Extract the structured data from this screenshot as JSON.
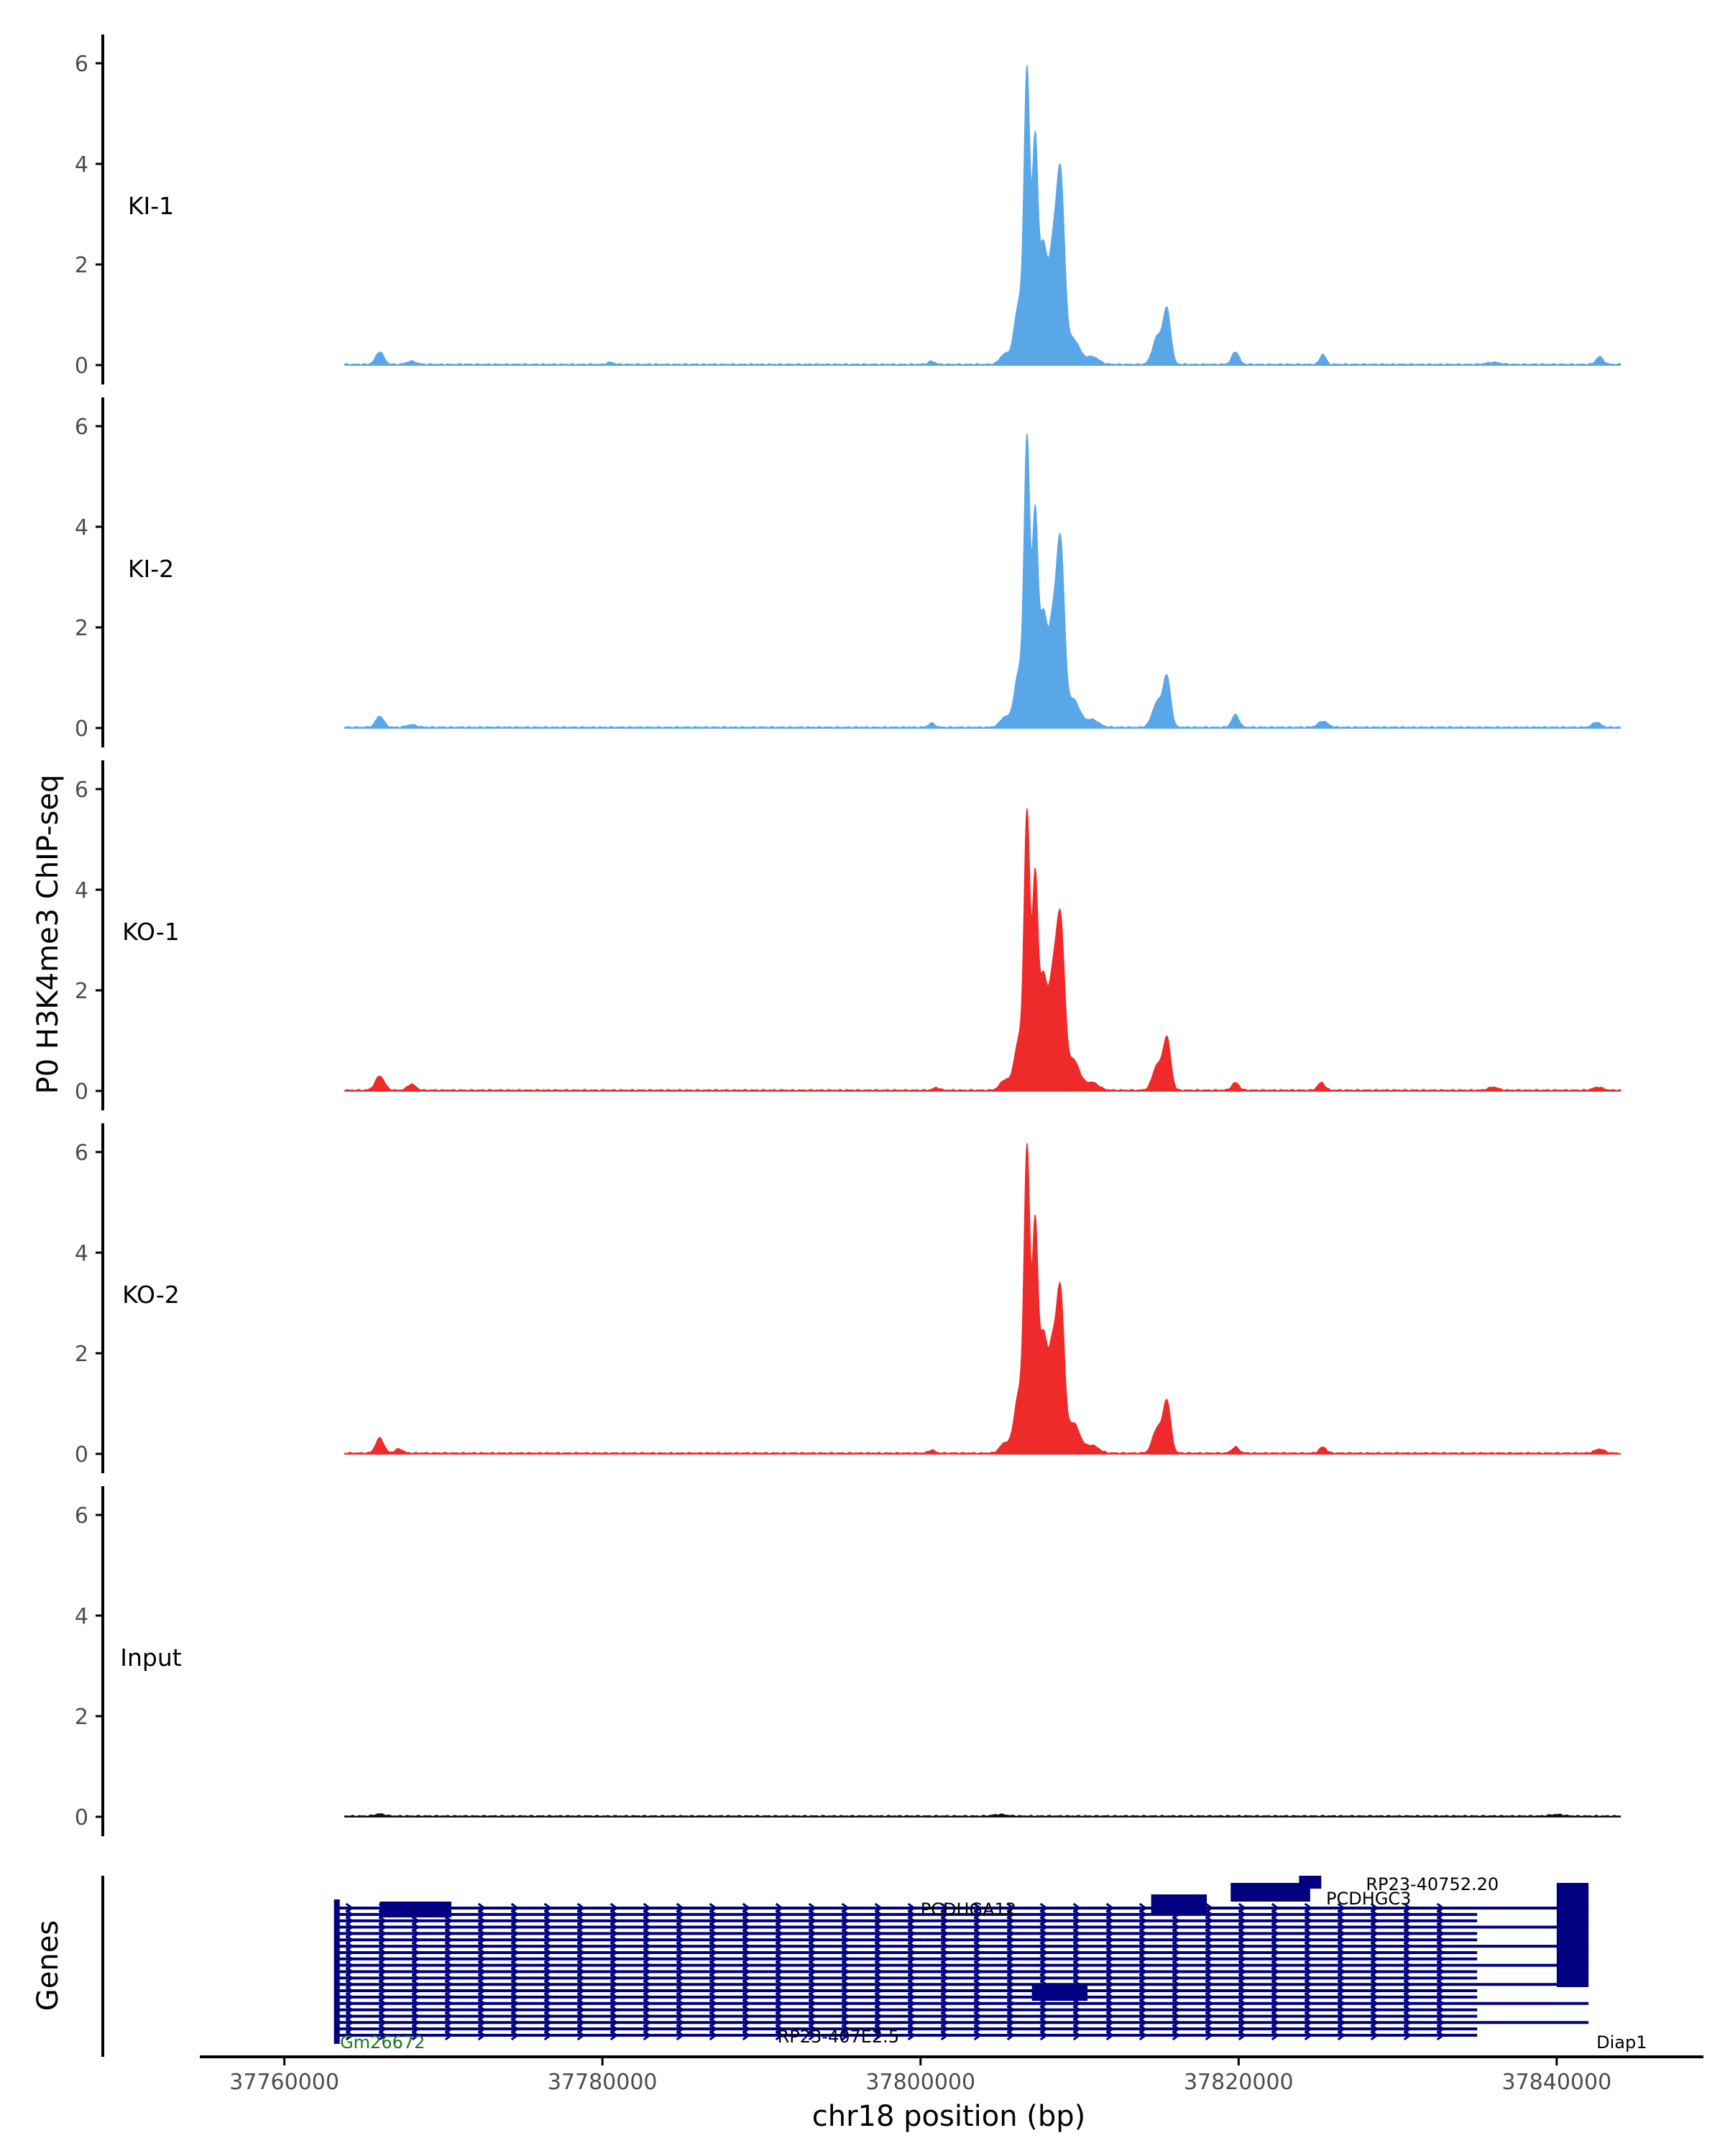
{
  "colors": {
    "ki": "#5aa7e8",
    "ko": "#ee2a2a",
    "input": "#111111",
    "gene": "#000080",
    "axis": "#000000",
    "tick_text": "#4d4d4d"
  },
  "chart_data": {
    "type": "area",
    "ylabel": "P0 H3K4me3 ChIP-seq",
    "xlabel": "chr18 position (bp)",
    "xlim": [
      37755000,
      37849000
    ],
    "ylim": [
      0,
      6.5
    ],
    "yticks": [
      "0",
      "2",
      "4",
      "6"
    ],
    "xticks": [
      "37760000",
      "37780000",
      "37800000",
      "37820000",
      "37840000"
    ],
    "xtick_values": [
      37760000,
      37780000,
      37800000,
      37820000,
      37840000
    ],
    "signal_range": [
      37763800,
      37844000
    ],
    "tracks": [
      {
        "name": "KI-1",
        "color_key": "ki",
        "peaks": [
          [
            37766000,
            0.25,
            250
          ],
          [
            37768000,
            0.06,
            300
          ],
          [
            37780500,
            0.04,
            200
          ],
          [
            37800700,
            0.06,
            200
          ],
          [
            37805300,
            0.2,
            300
          ],
          [
            37806200,
            1.2,
            300
          ],
          [
            37806700,
            5.6,
            180
          ],
          [
            37807200,
            4.2,
            170
          ],
          [
            37807700,
            2.3,
            250
          ],
          [
            37808300,
            2.0,
            250
          ],
          [
            37808800,
            3.6,
            250
          ],
          [
            37809600,
            0.5,
            400
          ],
          [
            37810800,
            0.15,
            400
          ],
          [
            37814900,
            0.55,
            300
          ],
          [
            37815500,
            1.05,
            230
          ],
          [
            37819800,
            0.25,
            220
          ],
          [
            37825300,
            0.2,
            180
          ],
          [
            37836000,
            0.04,
            400
          ],
          [
            37842700,
            0.15,
            220
          ]
        ]
      },
      {
        "name": "KI-2",
        "color_key": "ki",
        "peaks": [
          [
            37766000,
            0.22,
            250
          ],
          [
            37768000,
            0.05,
            300
          ],
          [
            37800700,
            0.08,
            200
          ],
          [
            37805300,
            0.2,
            300
          ],
          [
            37806200,
            1.1,
            300
          ],
          [
            37806700,
            5.5,
            180
          ],
          [
            37807200,
            4.0,
            170
          ],
          [
            37807700,
            2.2,
            250
          ],
          [
            37808300,
            1.9,
            250
          ],
          [
            37808800,
            3.5,
            240
          ],
          [
            37809600,
            0.55,
            400
          ],
          [
            37810800,
            0.15,
            400
          ],
          [
            37814900,
            0.5,
            320
          ],
          [
            37815500,
            0.95,
            230
          ],
          [
            37819800,
            0.25,
            220
          ],
          [
            37825300,
            0.12,
            300
          ],
          [
            37842500,
            0.1,
            250
          ]
        ]
      },
      {
        "name": "KO-1",
        "color_key": "ko",
        "peaks": [
          [
            37766000,
            0.28,
            280
          ],
          [
            37768000,
            0.12,
            250
          ],
          [
            37801000,
            0.05,
            200
          ],
          [
            37805300,
            0.2,
            300
          ],
          [
            37806200,
            1.0,
            300
          ],
          [
            37806700,
            5.3,
            180
          ],
          [
            37807200,
            4.0,
            170
          ],
          [
            37807700,
            2.2,
            250
          ],
          [
            37808300,
            2.0,
            250
          ],
          [
            37808800,
            3.2,
            250
          ],
          [
            37809600,
            0.6,
            400
          ],
          [
            37810800,
            0.15,
            400
          ],
          [
            37814900,
            0.5,
            300
          ],
          [
            37815500,
            1.0,
            230
          ],
          [
            37819800,
            0.15,
            220
          ],
          [
            37825200,
            0.15,
            220
          ],
          [
            37836000,
            0.06,
            300
          ],
          [
            37842600,
            0.06,
            300
          ]
        ]
      },
      {
        "name": "KO-2",
        "color_key": "ko",
        "peaks": [
          [
            37766000,
            0.3,
            250
          ],
          [
            37767200,
            0.08,
            250
          ],
          [
            37800700,
            0.06,
            200
          ],
          [
            37805300,
            0.2,
            300
          ],
          [
            37806200,
            1.2,
            300
          ],
          [
            37806700,
            5.8,
            180
          ],
          [
            37807200,
            4.3,
            170
          ],
          [
            37807700,
            2.3,
            250
          ],
          [
            37808300,
            2.0,
            250
          ],
          [
            37808800,
            3.0,
            230
          ],
          [
            37809600,
            0.6,
            400
          ],
          [
            37810800,
            0.15,
            400
          ],
          [
            37814900,
            0.5,
            300
          ],
          [
            37815500,
            1.0,
            230
          ],
          [
            37819800,
            0.12,
            220
          ],
          [
            37825300,
            0.12,
            220
          ],
          [
            37842700,
            0.08,
            300
          ]
        ]
      },
      {
        "name": "Input",
        "color_key": "input",
        "peaks": [
          [
            37766000,
            0.04,
            300
          ],
          [
            37805000,
            0.03,
            400
          ],
          [
            37840000,
            0.03,
            400
          ]
        ]
      }
    ],
    "genes": {
      "axis_label": "Genes",
      "transcripts": 21,
      "tx_start": 37763300,
      "tx_end": 37835000,
      "main_end": 37842000,
      "blocks": [
        [
          37766000,
          37770500
        ],
        [
          37807000,
          37810500
        ],
        [
          37814500,
          37818000
        ],
        [
          37819500,
          37824500
        ],
        [
          37823800,
          37825200
        ],
        [
          37840000,
          37842000
        ]
      ],
      "labels": [
        {
          "text": "PCDHGA12",
          "x": 37800000
        },
        {
          "text": "RP23-40752.20",
          "x": 37828000
        },
        {
          "text": "PCDHGC3",
          "x": 37825500
        },
        {
          "text": "RP23-407E2.5",
          "x": 37791000
        },
        {
          "text": "Gm26672",
          "x": 37763500
        },
        {
          "text": "Diap1",
          "x": 37842500
        }
      ]
    }
  }
}
